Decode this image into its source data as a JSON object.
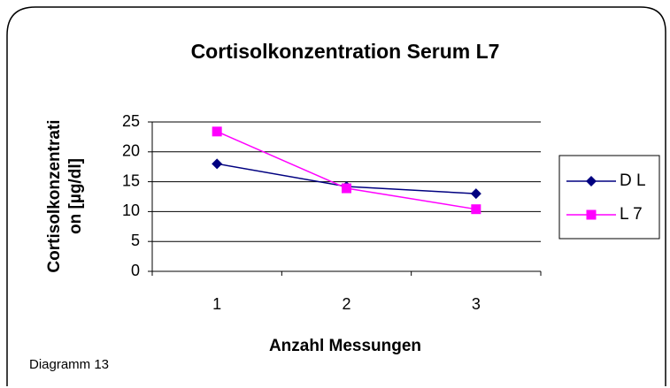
{
  "chart_data": {
    "type": "line",
    "title": "Cortisolkonzentration Serum L7",
    "x_label": "Anzahl Messungen",
    "y_label": [
      "Cortisolkonzentrati",
      "on [µg/dl]"
    ],
    "annotation": "Diagramm 13",
    "categories": [
      "1",
      "2",
      "3"
    ],
    "series": [
      {
        "name": "D L",
        "color": "#000080",
        "marker": "diamond",
        "values": [
          18,
          14.2,
          13
        ]
      },
      {
        "name": "L 7",
        "color": "#ff00ff",
        "marker": "square",
        "values": [
          23.4,
          13.9,
          10.4
        ]
      }
    ],
    "ylim": [
      0,
      25
    ],
    "yticks": [
      0,
      5,
      10,
      15,
      20,
      25
    ],
    "grid": true,
    "legend": "right"
  }
}
